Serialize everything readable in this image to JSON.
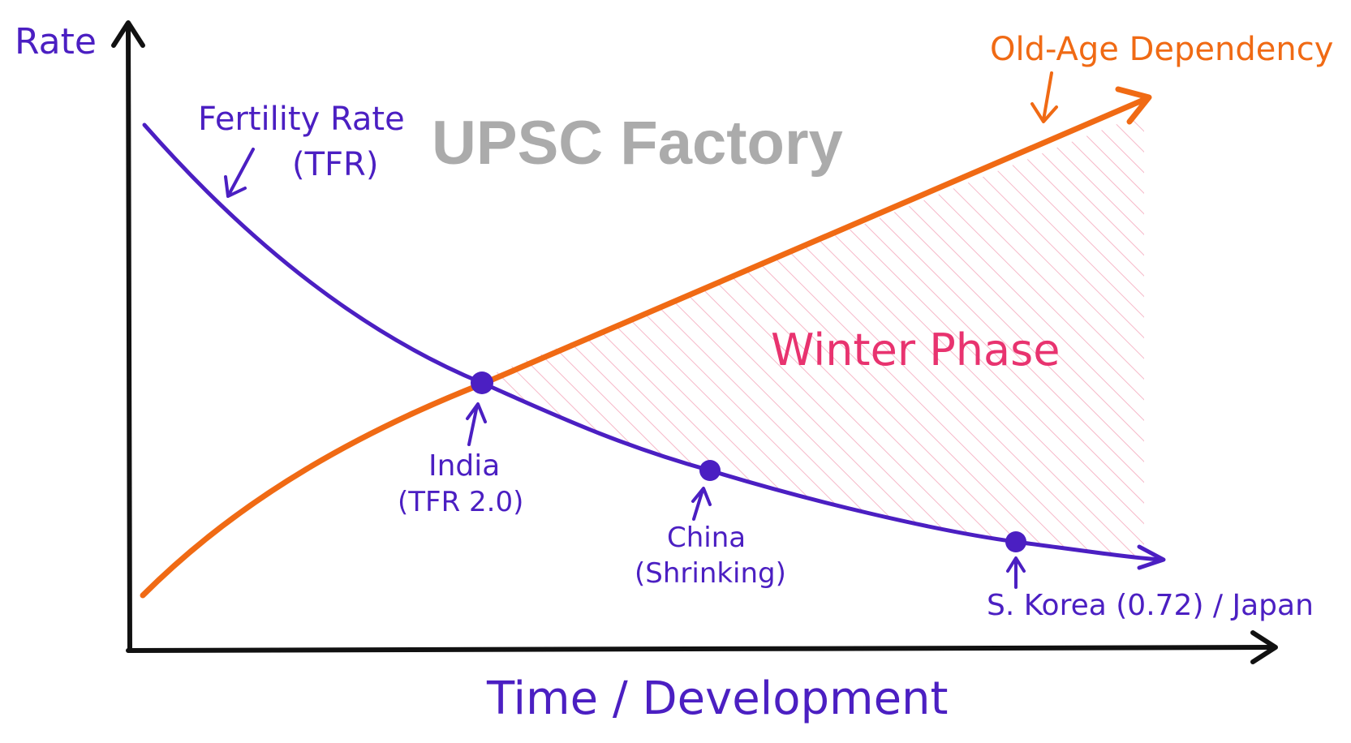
{
  "watermark": "UPSC Factory",
  "axes": {
    "y_label": "Rate",
    "x_label": "Time / Development"
  },
  "curves": {
    "fertility": {
      "label_line1": "Fertility Rate",
      "label_line2": "(TFR)",
      "color": "#4b1fc2"
    },
    "dependency": {
      "label": "Old-Age Dependency",
      "color": "#f06a14"
    }
  },
  "region": {
    "label": "Winter Phase",
    "color": "#e8336f",
    "hatch_color": "#f6b8c8"
  },
  "points": [
    {
      "line1": "India",
      "line2": "(TFR 2.0)"
    },
    {
      "line1": "China",
      "line2": "(Shrinking)"
    },
    {
      "line1": "S. Korea (0.72) / Japan",
      "line2": ""
    }
  ],
  "colors": {
    "axis": "#111111",
    "purple": "#4b1fc2",
    "orange": "#f06a14"
  }
}
